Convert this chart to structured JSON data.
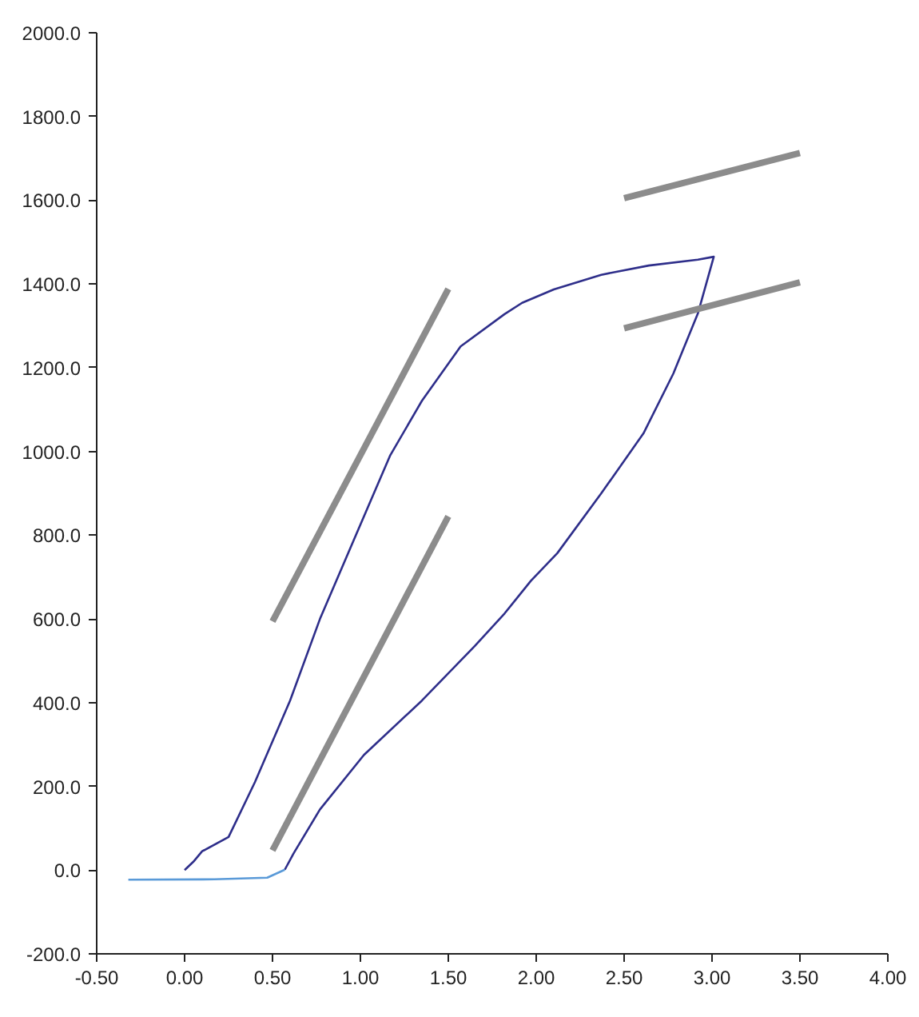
{
  "chart_data": {
    "type": "line",
    "xlim": [
      -0.5,
      4.0
    ],
    "ylim": [
      -200,
      2000
    ],
    "xticks": [
      {
        "value": -0.5,
        "label": "-0.50"
      },
      {
        "value": 0,
        "label": "0.00"
      },
      {
        "value": 0.5,
        "label": "0.50"
      },
      {
        "value": 1.0,
        "label": "1.00"
      },
      {
        "value": 1.5,
        "label": "1.50"
      },
      {
        "value": 2.0,
        "label": "2.00"
      },
      {
        "value": 2.5,
        "label": "2.50"
      },
      {
        "value": 3.0,
        "label": "3.00"
      },
      {
        "value": 3.5,
        "label": "3.50"
      },
      {
        "value": 4.0,
        "label": "4.00"
      }
    ],
    "yticks": [
      {
        "value": -200,
        "label": "-200.0"
      },
      {
        "value": 0,
        "label": "0.0"
      },
      {
        "value": 200,
        "label": "200.0"
      },
      {
        "value": 400,
        "label": "400.0"
      },
      {
        "value": 600,
        "label": "600.0"
      },
      {
        "value": 800,
        "label": "800.0"
      },
      {
        "value": 1000,
        "label": "1000.0"
      },
      {
        "value": 1200,
        "label": "1200.0"
      },
      {
        "value": 1400,
        "label": "1400.0"
      },
      {
        "value": 1600,
        "label": "1600.0"
      },
      {
        "value": 1800,
        "label": "1800.0"
      },
      {
        "value": 2000,
        "label": "2000.0"
      }
    ],
    "grid": false,
    "marker": "none",
    "series": [
      {
        "color": "#2e2e8a",
        "x": [
          0.0,
          0.05,
          0.1,
          0.25,
          0.4,
          0.6,
          0.77,
          0.97,
          1.17,
          1.35,
          1.57,
          1.82,
          1.92,
          2.1,
          2.37,
          2.64,
          2.92,
          3.01,
          2.92,
          2.78,
          2.61,
          2.37,
          2.12,
          1.97,
          1.82,
          1.65,
          1.35,
          1.02,
          0.77,
          0.62,
          0.57
        ],
        "values": [
          0,
          20,
          45,
          79,
          210,
          405,
          600,
          796,
          991,
          1121,
          1251,
          1328,
          1355,
          1387,
          1422,
          1444,
          1458,
          1465,
          1330,
          1186,
          1043,
          900,
          757,
          691,
          613,
          535,
          405,
          275,
          145,
          40,
          1
        ]
      },
      {
        "color": "#5a9ad8",
        "x": [
          0.57,
          0.47,
          0.17,
          -0.32
        ],
        "values": [
          1,
          -18,
          -22,
          -23
        ]
      },
      {
        "color": "#8c8c8c",
        "x": [
          0.5,
          1.5
        ],
        "values": [
          47,
          845
        ]
      },
      {
        "color": "#8c8c8c",
        "x": [
          0.5,
          1.5
        ],
        "values": [
          594,
          1388
        ]
      },
      {
        "color": "#8c8c8c",
        "x": [
          2.5,
          3.5
        ],
        "values": [
          1294,
          1404
        ]
      },
      {
        "color": "#8c8c8c",
        "x": [
          2.5,
          3.5
        ],
        "values": [
          1605,
          1713
        ]
      }
    ]
  }
}
